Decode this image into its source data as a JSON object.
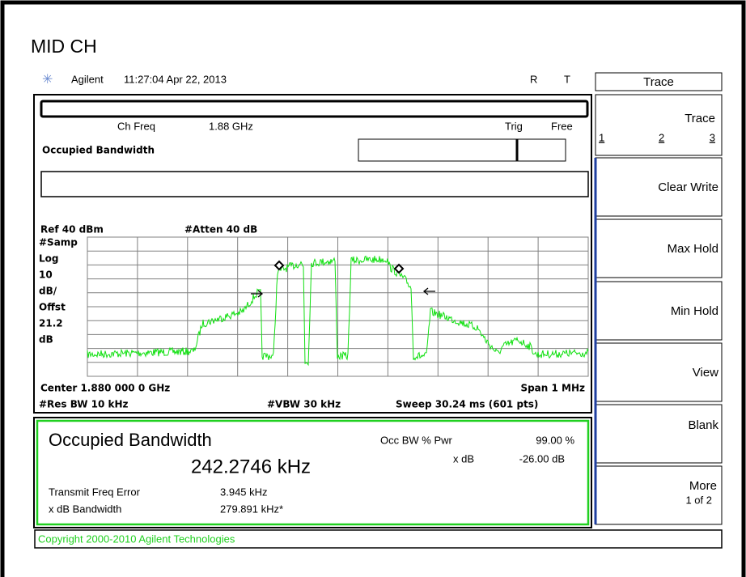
{
  "title": "MID CH",
  "header": {
    "brand": "Agilent",
    "time": "11:27:04  Apr 22, 2013",
    "flags": [
      "R",
      "T"
    ]
  },
  "softkeys": {
    "title": "Trace",
    "keys": [
      {
        "label": "Trace",
        "options": [
          "1",
          "2",
          "3"
        ]
      },
      {
        "label": "Clear Write"
      },
      {
        "label": "Max Hold"
      },
      {
        "label": "Min Hold"
      },
      {
        "label": "View"
      },
      {
        "label": "Blank"
      },
      {
        "label": "More",
        "sub": "1 of 2"
      }
    ]
  },
  "screen": {
    "ch_freq_label": "Ch Freq",
    "ch_freq": "1.88 GHz",
    "trig_label": "Trig",
    "trig": "Free",
    "mode": "Occupied Bandwidth",
    "ref": "Ref 40 dBm",
    "atten": "#Atten 40 dB",
    "scale": [
      "#Samp",
      "Log",
      "10",
      "dB/",
      "Offst",
      "21.2",
      "dB"
    ],
    "center": "Center 1.880 000 0 GHz",
    "span": "Span 1 MHz",
    "rbw": "#Res BW 10 kHz",
    "vbw": "#VBW 30 kHz",
    "sweep": "Sweep 30.24 ms (601 pts)"
  },
  "results": {
    "title": "Occupied Bandwidth",
    "value": "242.2746 kHz",
    "occ_label": "Occ BW % Pwr",
    "occ": "99.00 %",
    "xdb_label": "x dB",
    "xdb": "-26.00 dB",
    "tfe_label": "Transmit Freq Error",
    "tfe": "3.945 kHz",
    "xbw_label": "x dB Bandwidth",
    "xbw": "279.891 kHz*"
  },
  "copyright": "Copyright 2000-2010 Agilent Technologies"
}
